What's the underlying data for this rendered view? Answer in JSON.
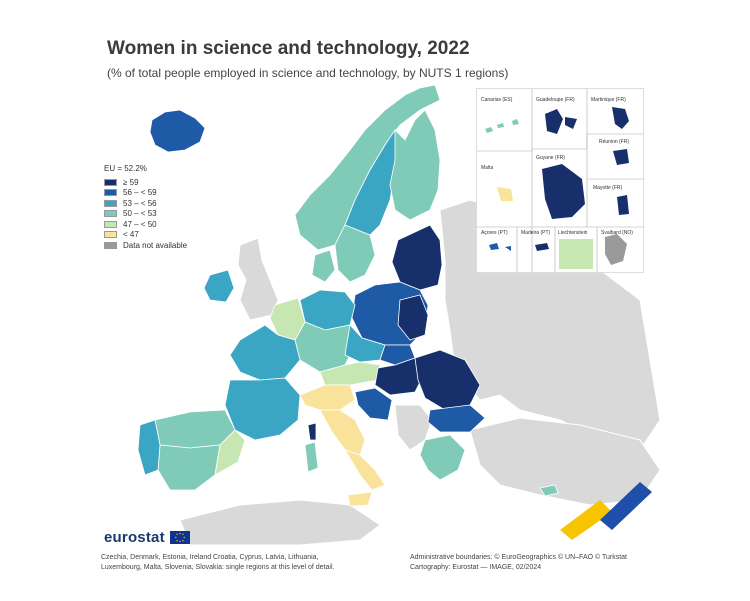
{
  "title": "Women in science and technology, 2022",
  "subtitle": "(% of total people employed in science and technology, by NUTS 1 regions)",
  "legend": {
    "eu_average": "EU = 52.2%",
    "classes": [
      {
        "label": "≥ 59",
        "color": "#172f6b"
      },
      {
        "label": "56 – < 59",
        "color": "#1f5aa6"
      },
      {
        "label": "53 – < 56",
        "color": "#3aa6c4"
      },
      {
        "label": "50 – < 53",
        "color": "#7fcbb8"
      },
      {
        "label": "47 – < 50",
        "color": "#c7e7b2"
      },
      {
        "label": "< 47",
        "color": "#f9e29a"
      },
      {
        "label": "Data not available",
        "color": "#9a9a9a"
      }
    ]
  },
  "insets": {
    "canarias": "Canarias (ES)",
    "guadeloupe": "Guadeloupe (FR)",
    "martinique": "Martinique (FR)",
    "guyane": "Guyane (FR)",
    "reunion": "Réunion (FR)",
    "malta": "Malta",
    "mayotte": "Mayotte (FR)",
    "acores": "Açores (PT)",
    "madeira": "Madeira (PT)",
    "liechtenstein": "Liechtenstein",
    "svalbard": "Svalbard (NO)"
  },
  "footer": {
    "logo": "eurostat",
    "note_left": "Czechia, Denmark, Estonia, Ireland Croatia, Cyprus, Latvia, Lithuania, Luxembourg, Malta, Slovenia, Slovakia: single regions at this level of detail.",
    "note_right_1": "Administrative boundaries: © EuroGeographics © UN–FAO © Turkstat",
    "note_right_2": "Cartography: Eurostat — IMAGE, 02/2024"
  },
  "colors": {
    "c59": "#172f6b",
    "c56": "#1f5aa6",
    "c53": "#3aa6c4",
    "c50": "#7fcbb8",
    "c47": "#c7e7b2",
    "clow": "#f9e29a",
    "non_eu": "#d9d9d9",
    "sea": "#ffffff"
  }
}
